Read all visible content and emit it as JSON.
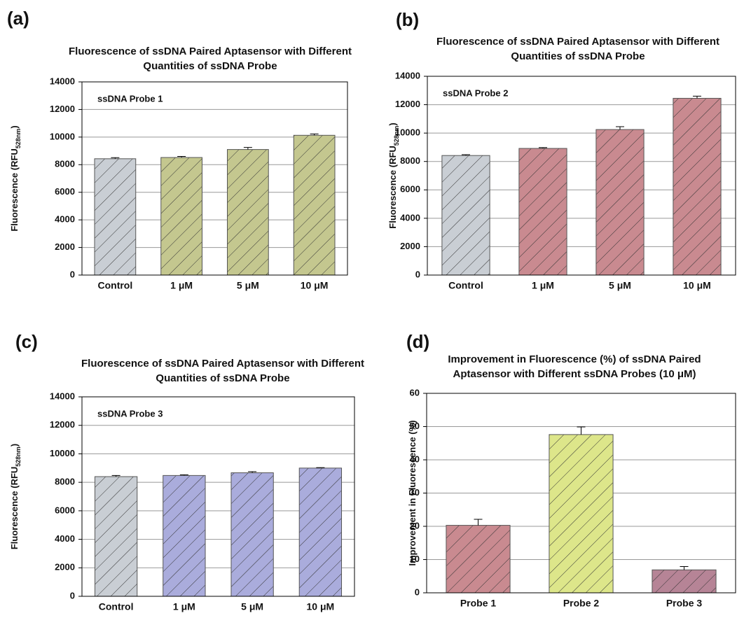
{
  "chart_data": [
    {
      "type": "bar",
      "panel": "(a)",
      "title": [
        "Fluorescence of ssDNA Paired Aptasensor with Different",
        "Quantities of ssDNA Probe"
      ],
      "annotation": "ssDNA Probe 1",
      "ylabel": [
        "Fluorescence (RFU",
        "528nm",
        ")"
      ],
      "categories": [
        "Control",
        "1 μM",
        "5 μM",
        "10 μM"
      ],
      "values": [
        8430,
        8520,
        9100,
        10130
      ],
      "errors": [
        80,
        80,
        150,
        100
      ],
      "colors": [
        "#c9ced4",
        "#c4c78f",
        "#c4c78f",
        "#c4c78f"
      ],
      "ylim": [
        0,
        14000
      ],
      "yticks": [
        0,
        2000,
        4000,
        6000,
        8000,
        10000,
        12000,
        14000
      ],
      "grid": true
    },
    {
      "type": "bar",
      "panel": "(b)",
      "title": [
        "Fluorescence of ssDNA Paired Aptasensor with Different",
        "Quantities of ssDNA Probe"
      ],
      "annotation": "ssDNA Probe 2",
      "ylabel": [
        "Fluorescence (RFU",
        "528nm",
        ")"
      ],
      "categories": [
        "Control",
        "1 μM",
        "5 μM",
        "10 μM"
      ],
      "values": [
        8420,
        8920,
        10250,
        12450
      ],
      "errors": [
        60,
        60,
        200,
        150
      ],
      "colors": [
        "#c9ced4",
        "#c98a90",
        "#c98a90",
        "#c98a90"
      ],
      "ylim": [
        0,
        14000
      ],
      "yticks": [
        0,
        2000,
        4000,
        6000,
        8000,
        10000,
        12000,
        14000
      ],
      "grid": true
    },
    {
      "type": "bar",
      "panel": "(c)",
      "title": [
        "Fluorescence of ssDNA Paired Aptasensor with Different",
        "Quantities of ssDNA Probe"
      ],
      "annotation": "ssDNA Probe 3",
      "ylabel": [
        "Fluorescence (RFU",
        "528nm",
        ")"
      ],
      "categories": [
        "Control",
        "1 μM",
        "5 μM",
        "10 μM"
      ],
      "values": [
        8400,
        8480,
        8670,
        9000
      ],
      "errors": [
        80,
        50,
        80,
        30
      ],
      "colors": [
        "#c9ced4",
        "#aaacdc",
        "#aaacdc",
        "#aaacdc"
      ],
      "ylim": [
        0,
        14000
      ],
      "yticks": [
        0,
        2000,
        4000,
        6000,
        8000,
        10000,
        12000,
        14000
      ],
      "grid": true
    },
    {
      "type": "bar",
      "panel": "(d)",
      "title": [
        "Improvement in Fluorescence (%) of ssDNA Paired",
        "Aptasensor with Different ssDNA Probes (10 μM)"
      ],
      "ylabel": [
        "Improvement in Fluorescence (%)"
      ],
      "categories": [
        "Probe 1",
        "Probe 2",
        "Probe 3"
      ],
      "values": [
        20.3,
        47.6,
        6.9
      ],
      "errors": [
        1.8,
        2.3,
        1.0
      ],
      "colors": [
        "#c98a90",
        "#dde68a",
        "#b68496"
      ],
      "ylim": [
        0,
        60
      ],
      "yticks": [
        0,
        10,
        20,
        30,
        40,
        50,
        60
      ],
      "grid": true
    }
  ]
}
